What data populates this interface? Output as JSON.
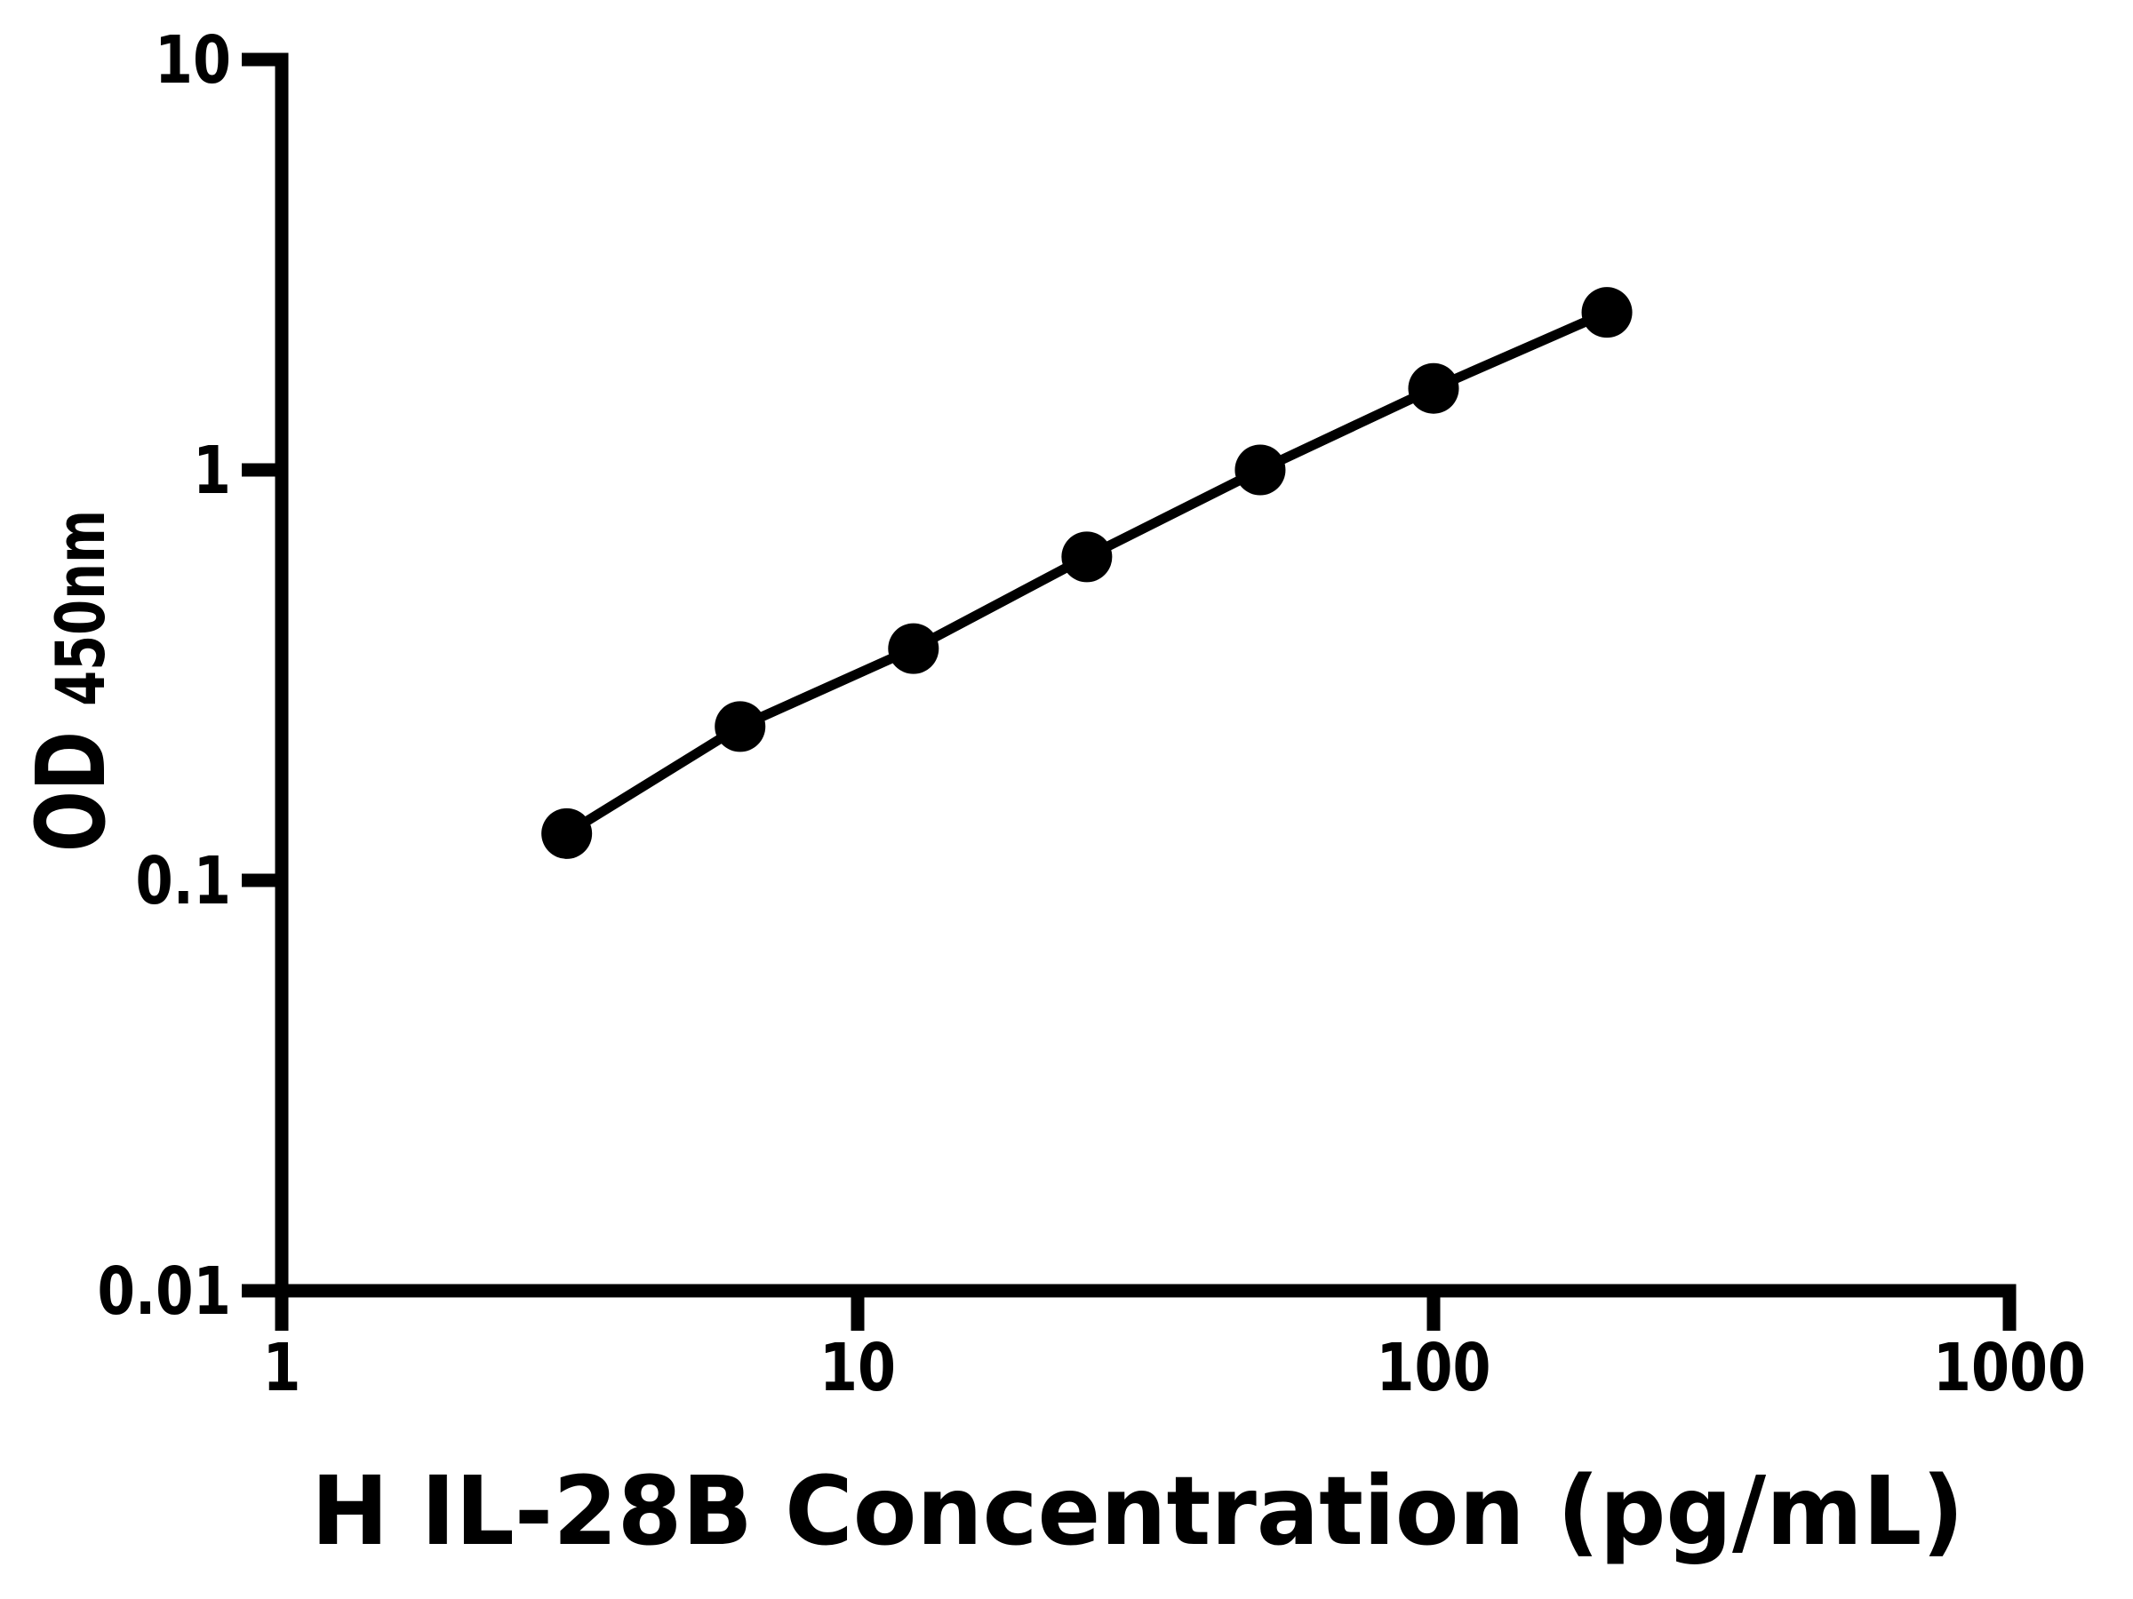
{
  "figure": {
    "background": "#ffffff",
    "foreground": "#000000"
  },
  "chart_data": {
    "type": "scatter",
    "title": "",
    "xlabel": "H IL-28B Concentration (pg/mL)",
    "ylabel_main": "OD",
    "ylabel_sub": "450nm",
    "xscale": "log",
    "yscale": "log",
    "xlim": [
      1,
      1000
    ],
    "ylim": [
      0.01,
      10
    ],
    "grid": false,
    "legend": "none",
    "x": [
      3.125,
      6.25,
      12.5,
      25,
      50,
      100,
      200
    ],
    "y": [
      0.13,
      0.237,
      0.367,
      0.614,
      1.0,
      1.58,
      2.42
    ],
    "x_ticks": [
      {
        "value": 1,
        "label": "1"
      },
      {
        "value": 10,
        "label": "10"
      },
      {
        "value": 100,
        "label": "100"
      },
      {
        "value": 1000,
        "label": "1000"
      }
    ],
    "y_ticks": [
      {
        "value": 10,
        "label": "10"
      },
      {
        "value": 1,
        "label": "1"
      },
      {
        "value": 0.1,
        "label": "0.1"
      },
      {
        "value": 0.01,
        "label": "0.01"
      }
    ],
    "series_name": "standard-curve",
    "marker": "circle",
    "marker_color": "#000000",
    "line_color": "#000000",
    "axis_color": "#000000"
  }
}
